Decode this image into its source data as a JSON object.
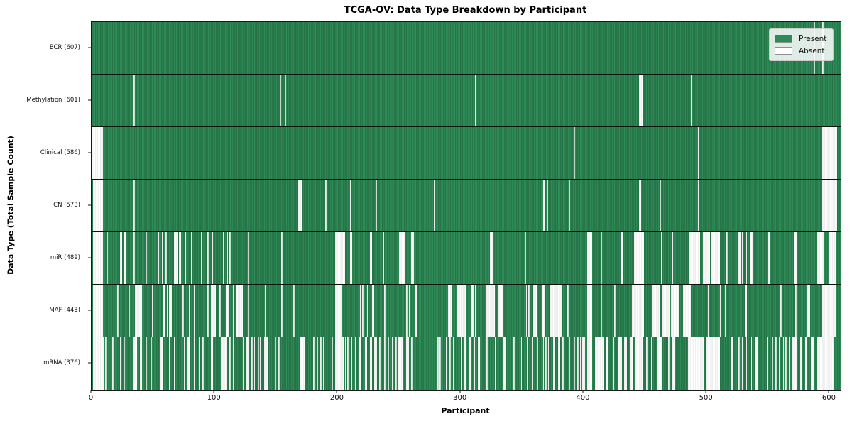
{
  "chart_data": {
    "type": "heatmap",
    "title": "TCGA-OV: Data Type Breakdown by Participant",
    "xlabel": "Participant",
    "ylabel": "Data Type (Total Sample Count)",
    "n_participants": 609,
    "x_ticks": [
      0,
      100,
      200,
      300,
      400,
      500,
      600
    ],
    "x_range": [
      0,
      609
    ],
    "grid": false,
    "legend_position": "upper right",
    "legend_items": [
      {
        "label": "Present",
        "color": "#2e8b57"
      },
      {
        "label": "Absent",
        "color": "#ffffff"
      }
    ],
    "colors": {
      "present": "#2e8b57",
      "present_edge": "#1c5936",
      "absent": "#ffffff",
      "absent_edge": "#d9d9d9",
      "legend_bg": "rgba(255,255,255,0.85)",
      "legend_border": "#cccccc"
    },
    "rows": [
      {
        "data_type": "BCR",
        "label": "BCR (607)",
        "present_count": 607,
        "absent_intervals": [
          [
            587,
            587
          ],
          [
            594,
            594
          ]
        ]
      },
      {
        "data_type": "Methylation",
        "label": "Methylation (601)",
        "present_count": 601,
        "absent_intervals": [
          [
            34,
            34
          ],
          [
            153,
            153
          ],
          [
            157,
            157
          ],
          [
            312,
            312
          ],
          [
            445,
            447
          ],
          [
            487,
            487
          ]
        ]
      },
      {
        "data_type": "Clinical",
        "label": "Clinical (586)",
        "present_count": 586,
        "absent_intervals": [
          [
            0,
            8
          ],
          [
            392,
            392
          ],
          [
            493,
            493
          ],
          [
            594,
            605
          ]
        ]
      },
      {
        "data_type": "CN",
        "label": "CN (573)",
        "present_count": 573,
        "absent_intervals": [
          [
            1,
            8
          ],
          [
            34,
            34
          ],
          [
            168,
            170
          ],
          [
            190,
            190
          ],
          [
            210,
            210
          ],
          [
            231,
            231
          ],
          [
            278,
            278
          ],
          [
            367,
            368
          ],
          [
            370,
            370
          ],
          [
            388,
            388
          ],
          [
            445,
            446
          ],
          [
            462,
            462
          ],
          [
            493,
            493
          ],
          [
            594,
            605
          ]
        ]
      },
      {
        "data_type": "miR",
        "label": "miR (489)",
        "present_count": 489,
        "absent_intervals": [
          [
            1,
            8
          ],
          [
            12,
            12
          ],
          [
            23,
            24
          ],
          [
            26,
            27
          ],
          [
            34,
            34
          ],
          [
            44,
            44
          ],
          [
            54,
            54
          ],
          [
            57,
            57
          ],
          [
            60,
            60
          ],
          [
            67,
            69
          ],
          [
            71,
            72
          ],
          [
            76,
            76
          ],
          [
            81,
            81
          ],
          [
            89,
            89
          ],
          [
            94,
            94
          ],
          [
            98,
            98
          ],
          [
            107,
            107
          ],
          [
            110,
            110
          ],
          [
            112,
            112
          ],
          [
            127,
            127
          ],
          [
            154,
            154
          ],
          [
            198,
            205
          ],
          [
            210,
            211
          ],
          [
            226,
            227
          ],
          [
            237,
            237
          ],
          [
            250,
            254
          ],
          [
            260,
            261
          ],
          [
            324,
            325
          ],
          [
            352,
            352
          ],
          [
            403,
            406
          ],
          [
            414,
            414
          ],
          [
            430,
            431
          ],
          [
            441,
            448
          ],
          [
            463,
            463
          ],
          [
            472,
            472
          ],
          [
            486,
            494
          ],
          [
            497,
            502
          ],
          [
            504,
            510
          ],
          [
            516,
            516
          ],
          [
            521,
            521
          ],
          [
            526,
            527
          ],
          [
            529,
            529
          ],
          [
            532,
            532
          ],
          [
            535,
            537
          ],
          [
            550,
            551
          ],
          [
            571,
            573
          ],
          [
            590,
            594
          ],
          [
            599,
            604
          ]
        ]
      },
      {
        "data_type": "MAF",
        "label": "MAF (443)",
        "present_count": 443,
        "absent_intervals": [
          [
            1,
            8
          ],
          [
            21,
            21
          ],
          [
            30,
            30
          ],
          [
            35,
            40
          ],
          [
            49,
            49
          ],
          [
            58,
            59
          ],
          [
            61,
            61
          ],
          [
            63,
            64
          ],
          [
            74,
            74
          ],
          [
            79,
            79
          ],
          [
            83,
            83
          ],
          [
            94,
            94
          ],
          [
            97,
            100
          ],
          [
            104,
            104
          ],
          [
            109,
            111
          ],
          [
            115,
            115
          ],
          [
            117,
            122
          ],
          [
            127,
            127
          ],
          [
            141,
            141
          ],
          [
            154,
            154
          ],
          [
            164,
            164
          ],
          [
            198,
            202
          ],
          [
            218,
            218
          ],
          [
            220,
            220
          ],
          [
            224,
            224
          ],
          [
            228,
            229
          ],
          [
            238,
            238
          ],
          [
            256,
            256
          ],
          [
            258,
            258
          ],
          [
            263,
            264
          ],
          [
            290,
            292
          ],
          [
            297,
            303
          ],
          [
            308,
            310
          ],
          [
            312,
            312
          ],
          [
            321,
            327
          ],
          [
            331,
            334
          ],
          [
            353,
            353
          ],
          [
            355,
            355
          ],
          [
            359,
            361
          ],
          [
            366,
            368
          ],
          [
            373,
            382
          ],
          [
            387,
            387
          ],
          [
            403,
            406
          ],
          [
            414,
            414
          ],
          [
            425,
            425
          ],
          [
            439,
            448
          ],
          [
            456,
            461
          ],
          [
            464,
            469
          ],
          [
            471,
            477
          ],
          [
            481,
            486
          ],
          [
            501,
            501
          ],
          [
            511,
            511
          ],
          [
            515,
            515
          ],
          [
            531,
            532
          ],
          [
            543,
            543
          ],
          [
            560,
            560
          ],
          [
            572,
            572
          ],
          [
            582,
            583
          ],
          [
            594,
            604
          ]
        ]
      },
      {
        "data_type": "mRNA",
        "label": "mRNA (376)",
        "present_count": 376,
        "absent_intervals": [
          [
            1,
            9
          ],
          [
            11,
            11
          ],
          [
            17,
            17
          ],
          [
            23,
            23
          ],
          [
            26,
            26
          ],
          [
            34,
            36
          ],
          [
            39,
            40
          ],
          [
            44,
            44
          ],
          [
            48,
            48
          ],
          [
            56,
            57
          ],
          [
            63,
            63
          ],
          [
            67,
            67
          ],
          [
            75,
            75
          ],
          [
            78,
            79
          ],
          [
            83,
            83
          ],
          [
            87,
            87
          ],
          [
            90,
            90
          ],
          [
            97,
            98
          ],
          [
            105,
            109
          ],
          [
            112,
            112
          ],
          [
            115,
            115
          ],
          [
            123,
            123
          ],
          [
            126,
            127
          ],
          [
            130,
            130
          ],
          [
            132,
            132
          ],
          [
            135,
            135
          ],
          [
            137,
            137
          ],
          [
            140,
            143
          ],
          [
            149,
            149
          ],
          [
            152,
            152
          ],
          [
            155,
            155
          ],
          [
            169,
            172
          ],
          [
            177,
            177
          ],
          [
            180,
            180
          ],
          [
            183,
            183
          ],
          [
            186,
            186
          ],
          [
            188,
            188
          ],
          [
            195,
            195
          ],
          [
            198,
            204
          ],
          [
            206,
            206
          ],
          [
            208,
            208
          ],
          [
            211,
            211
          ],
          [
            214,
            214
          ],
          [
            217,
            218
          ],
          [
            222,
            223
          ],
          [
            226,
            227
          ],
          [
            230,
            231
          ],
          [
            234,
            234
          ],
          [
            238,
            238
          ],
          [
            241,
            241
          ],
          [
            244,
            244
          ],
          [
            247,
            247
          ],
          [
            249,
            252
          ],
          [
            256,
            257
          ],
          [
            260,
            260
          ],
          [
            281,
            281
          ],
          [
            283,
            283
          ],
          [
            288,
            288
          ],
          [
            291,
            291
          ],
          [
            294,
            294
          ],
          [
            300,
            300
          ],
          [
            303,
            304
          ],
          [
            307,
            308
          ],
          [
            311,
            311
          ],
          [
            314,
            315
          ],
          [
            321,
            321
          ],
          [
            326,
            326
          ],
          [
            328,
            328
          ],
          [
            330,
            330
          ],
          [
            334,
            336
          ],
          [
            343,
            343
          ],
          [
            349,
            349
          ],
          [
            354,
            354
          ],
          [
            358,
            358
          ],
          [
            362,
            362
          ],
          [
            367,
            367
          ],
          [
            369,
            369
          ],
          [
            371,
            371
          ],
          [
            375,
            376
          ],
          [
            379,
            380
          ],
          [
            383,
            383
          ],
          [
            386,
            386
          ],
          [
            388,
            388
          ],
          [
            390,
            390
          ],
          [
            392,
            392
          ],
          [
            395,
            395
          ],
          [
            397,
            397
          ],
          [
            399,
            400
          ],
          [
            403,
            406
          ],
          [
            409,
            415
          ],
          [
            418,
            419
          ],
          [
            424,
            424
          ],
          [
            428,
            430
          ],
          [
            433,
            434
          ],
          [
            438,
            439
          ],
          [
            442,
            447
          ],
          [
            451,
            451
          ],
          [
            455,
            455
          ],
          [
            460,
            463
          ],
          [
            469,
            469
          ],
          [
            472,
            473
          ],
          [
            485,
            497
          ],
          [
            500,
            510
          ],
          [
            520,
            521
          ],
          [
            526,
            526
          ],
          [
            529,
            529
          ],
          [
            532,
            532
          ],
          [
            536,
            536
          ],
          [
            540,
            541
          ],
          [
            549,
            549
          ],
          [
            553,
            553
          ],
          [
            556,
            556
          ],
          [
            559,
            559
          ],
          [
            562,
            562
          ],
          [
            564,
            564
          ],
          [
            567,
            567
          ],
          [
            570,
            573
          ],
          [
            576,
            577
          ],
          [
            580,
            581
          ],
          [
            585,
            586
          ],
          [
            590,
            602
          ]
        ]
      }
    ]
  }
}
